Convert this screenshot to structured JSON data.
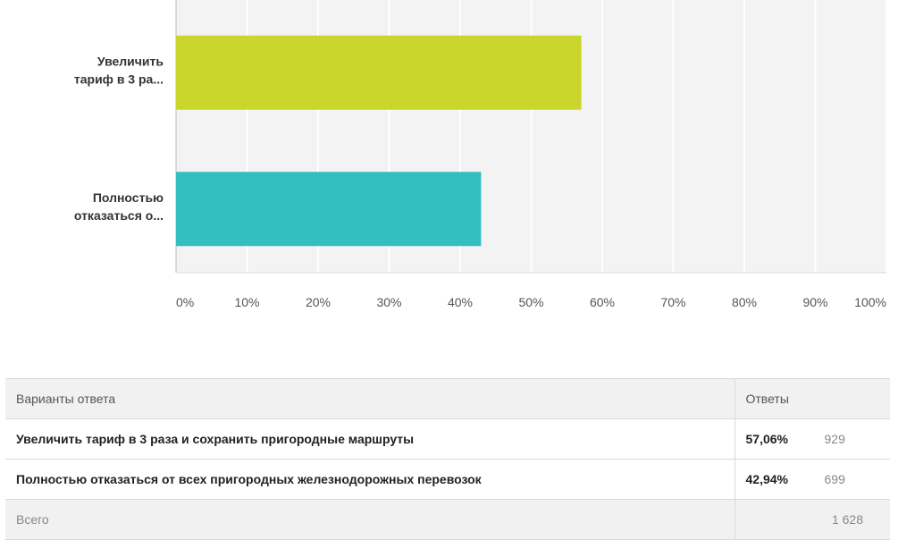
{
  "chart_data": {
    "type": "bar",
    "orientation": "horizontal",
    "categories": [
      "Увеличить тариф в 3 ра...",
      "Полностью отказаться о..."
    ],
    "category_lines": [
      [
        "Увеличить",
        "тариф в 3 ра..."
      ],
      [
        "Полностью",
        "отказаться о..."
      ]
    ],
    "values": [
      57.06,
      42.94
    ],
    "colors": [
      "#cbd62c",
      "#33bec1"
    ],
    "xlim": [
      0,
      100
    ],
    "xticks": [
      "0%",
      "10%",
      "20%",
      "30%",
      "40%",
      "50%",
      "60%",
      "70%",
      "80%",
      "90%",
      "100%"
    ],
    "grid": true
  },
  "table": {
    "header": {
      "answer": "Варианты ответа",
      "responses": "Ответы"
    },
    "rows": [
      {
        "answer": "Увеличить тариф в 3 раза и сохранить пригородные маршруты",
        "percent": "57,06%",
        "count": "929"
      },
      {
        "answer": "Полностью отказаться от всех пригородных железнодорожных перевозок",
        "percent": "42,94%",
        "count": "699"
      }
    ],
    "total": {
      "label": "Всего",
      "count": "1 628"
    }
  }
}
